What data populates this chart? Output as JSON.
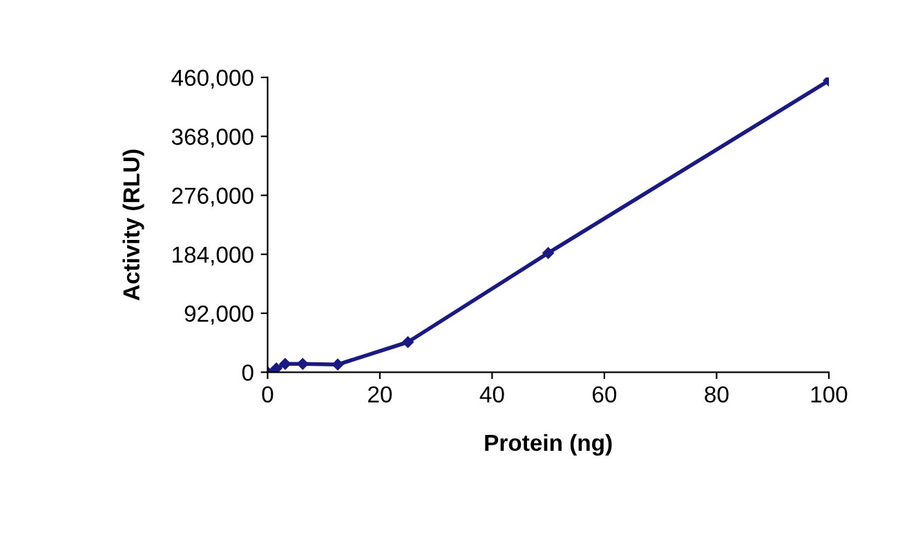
{
  "chart_data": {
    "type": "line",
    "xlabel": "Protein (ng)",
    "ylabel": "Activity (RLU)",
    "x": [
      0,
      1.56,
      3.125,
      6.25,
      12.5,
      25,
      50,
      100
    ],
    "series": [
      {
        "color": "#1a1a80",
        "values": [
          0,
          6000,
          13000,
          13000,
          12000,
          47000,
          186000,
          455000
        ]
      }
    ],
    "xlim": [
      0,
      100
    ],
    "xticks": [
      0,
      20,
      40,
      60,
      80,
      100
    ],
    "ylim": [
      0,
      460000
    ],
    "yticks": [
      {
        "value": 0,
        "label": "0"
      },
      {
        "value": 92000,
        "label": "92,000"
      },
      {
        "value": 184000,
        "label": "184,000"
      },
      {
        "value": 276000,
        "label": "276,000"
      },
      {
        "value": 368000,
        "label": "368,000"
      },
      {
        "value": 460000,
        "label": "460,000"
      }
    ],
    "grid": false,
    "legend": false,
    "marker": "diamond",
    "line_style": "solid"
  }
}
